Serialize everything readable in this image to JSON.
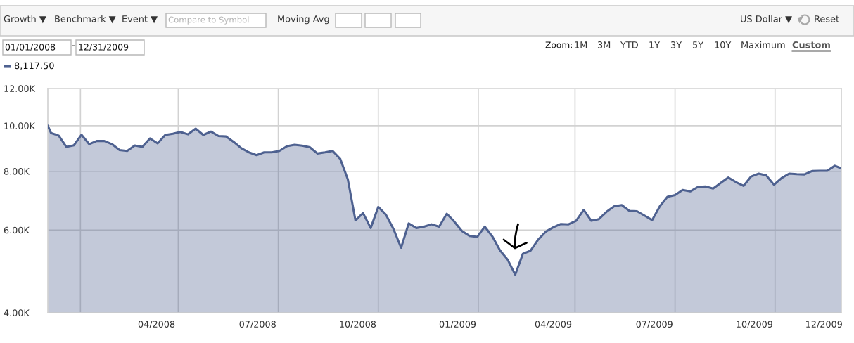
{
  "chart_data": {
    "type": "area",
    "x": [
      "2008-01-01",
      "2008-01-04",
      "2008-01-11",
      "2008-01-18",
      "2008-01-25",
      "2008-02-01",
      "2008-02-08",
      "2008-02-15",
      "2008-02-22",
      "2008-02-29",
      "2008-03-07",
      "2008-03-14",
      "2008-03-21",
      "2008-03-28",
      "2008-04-04",
      "2008-04-11",
      "2008-04-18",
      "2008-04-25",
      "2008-05-02",
      "2008-05-09",
      "2008-05-16",
      "2008-05-23",
      "2008-05-30",
      "2008-06-06",
      "2008-06-13",
      "2008-06-20",
      "2008-06-27",
      "2008-07-04",
      "2008-07-11",
      "2008-07-18",
      "2008-07-25",
      "2008-08-01",
      "2008-08-08",
      "2008-08-15",
      "2008-08-22",
      "2008-08-29",
      "2008-09-05",
      "2008-09-12",
      "2008-09-19",
      "2008-09-26",
      "2008-10-03",
      "2008-10-10",
      "2008-10-17",
      "2008-10-24",
      "2008-10-31",
      "2008-11-07",
      "2008-11-14",
      "2008-11-21",
      "2008-11-28",
      "2008-12-05",
      "2008-12-12",
      "2008-12-19",
      "2008-12-26",
      "2009-01-02",
      "2009-01-09",
      "2009-01-16",
      "2009-01-23",
      "2009-01-30",
      "2009-02-06",
      "2009-02-13",
      "2009-02-20",
      "2009-02-27",
      "2009-03-06",
      "2009-03-13",
      "2009-03-20",
      "2009-03-27",
      "2009-04-03",
      "2009-04-10",
      "2009-04-17",
      "2009-04-24",
      "2009-05-01",
      "2009-05-08",
      "2009-05-15",
      "2009-05-22",
      "2009-05-29",
      "2009-06-05",
      "2009-06-12",
      "2009-06-19",
      "2009-06-26",
      "2009-07-03",
      "2009-07-10",
      "2009-07-17",
      "2009-07-24",
      "2009-07-31",
      "2009-08-07",
      "2009-08-14",
      "2009-08-21",
      "2009-08-28",
      "2009-09-04",
      "2009-09-11",
      "2009-09-18",
      "2009-09-25",
      "2009-10-02",
      "2009-10-09",
      "2009-10-16",
      "2009-10-23",
      "2009-10-30",
      "2009-11-06",
      "2009-11-13",
      "2009-11-20",
      "2009-11-27",
      "2009-12-04",
      "2009-12-11",
      "2009-12-18",
      "2009-12-25",
      "2009-12-31"
    ],
    "series": [
      {
        "color": "#4e6190",
        "values": [
          10000,
          9650,
          9530,
          9020,
          9090,
          9570,
          9140,
          9280,
          9280,
          9140,
          8880,
          8840,
          9080,
          9020,
          9400,
          9170,
          9560,
          9620,
          9700,
          9590,
          9860,
          9560,
          9720,
          9510,
          9490,
          9240,
          8960,
          8780,
          8660,
          8780,
          8780,
          8840,
          9050,
          9110,
          9070,
          9000,
          8730,
          8780,
          8840,
          8500,
          7690,
          6290,
          6520,
          6060,
          6720,
          6470,
          6030,
          5500,
          6200,
          6060,
          6100,
          6170,
          6100,
          6500,
          6250,
          5970,
          5830,
          5800,
          6100,
          5810,
          5430,
          5190,
          4820,
          5340,
          5420,
          5720,
          5950,
          6080,
          6180,
          6170,
          6280,
          6620,
          6280,
          6330,
          6560,
          6740,
          6780,
          6590,
          6580,
          6440,
          6300,
          6740,
          7060,
          7120,
          7300,
          7250,
          7410,
          7430,
          7350,
          7560,
          7760,
          7590,
          7450,
          7800,
          7910,
          7840,
          7490,
          7740,
          7910,
          7890,
          7880,
          8010,
          8020,
          8020,
          8220,
          8117.5
        ]
      }
    ],
    "xlim": [
      "2008-01-01",
      "2009-12-31"
    ],
    "ylim": [
      4000,
      12000
    ],
    "log": true,
    "xticks": [
      {
        "value": "2008-01-31",
        "label": null
      },
      {
        "value": "2008-04-10",
        "label": "04/2008"
      },
      {
        "value": "2008-04-30",
        "label": null
      },
      {
        "value": "2008-07-12",
        "label": "07/2008"
      },
      {
        "value": "2008-07-31",
        "label": null
      },
      {
        "value": "2008-10-12",
        "label": "10/2008"
      },
      {
        "value": "2008-10-31",
        "label": null
      },
      {
        "value": "2009-01-12",
        "label": "01/2009"
      },
      {
        "value": "2009-01-31",
        "label": null
      },
      {
        "value": "2009-04-10",
        "label": "04/2009"
      },
      {
        "value": "2009-04-30",
        "label": null
      },
      {
        "value": "2009-07-12",
        "label": "07/2009"
      },
      {
        "value": "2009-07-31",
        "label": null
      },
      {
        "value": "2009-10-12",
        "label": "10/2009"
      },
      {
        "value": "2009-10-31",
        "label": null
      },
      {
        "value": "2009-12-15",
        "label": "12/2009"
      }
    ],
    "yticks": [
      {
        "value": 4000,
        "label": "4.00K"
      },
      {
        "value": 6000,
        "label": "6.00K"
      },
      {
        "value": 8000,
        "label": "8.00K"
      },
      {
        "value": 10000,
        "label": "10.00K"
      },
      {
        "value": 12000,
        "label": "12.00K"
      }
    ],
    "grid": true,
    "annotations": [
      "Growth ▼",
      "Benchmark ▼",
      "Event ▼",
      "Compare to Symbol",
      "Moving Avg",
      "US Dollar ▼",
      "Reset",
      "01/01/2008",
      "-",
      "12/31/2009",
      "Zoom:",
      "1M",
      "3M",
      "YTD",
      "1Y",
      "3Y",
      "5Y",
      "10Y",
      "Maximum",
      "Custom",
      "8,117.50"
    ]
  }
}
